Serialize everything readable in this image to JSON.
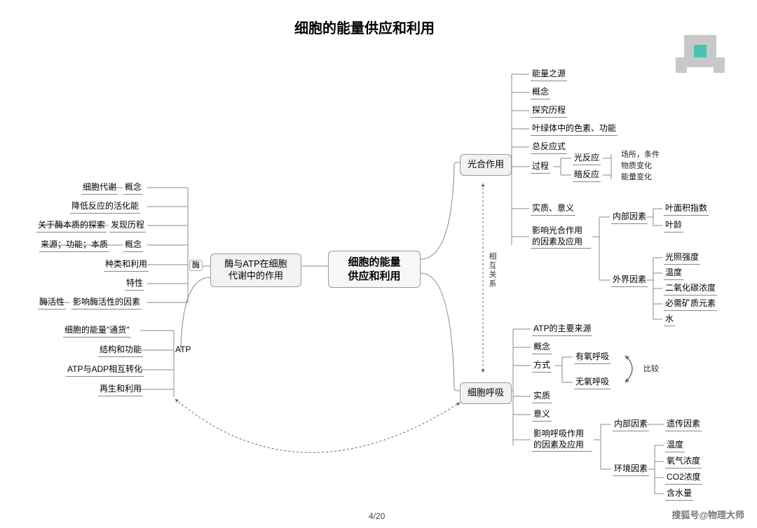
{
  "title": "细胞的能量供应和利用",
  "page": "4/20",
  "watermark": "搜狐号@物理大师",
  "rel_label": "相互关系",
  "compare_label": "比较",
  "colors": {
    "background": "#ffffff",
    "stroke": "#888888",
    "box_fill": "#f2f2f2",
    "text": "#000000"
  },
  "center": "细胞的能量\n供应和利用",
  "left_branch": {
    "box": "酶与ATP在细胞\n代谢中的作用",
    "enzyme": {
      "label": "酶",
      "items": [
        {
          "l1": "概念",
          "l2": "细胞代谢"
        },
        {
          "l1": "降低反应的活化能"
        },
        {
          "l1": "发现历程",
          "l2": "关于酶本质的探索"
        },
        {
          "l1": "概念",
          "l2": "来源；功能；本质"
        },
        {
          "l1": "种类和利用"
        },
        {
          "l1": "特性"
        },
        {
          "l1": "影响酶活性的因素",
          "l2": "酶活性"
        }
      ]
    },
    "atp": {
      "label": "ATP",
      "items": [
        {
          "l1": "细胞的能量\"通货\""
        },
        {
          "l1": "结构和功能"
        },
        {
          "l1": "ATP与ADP相互转化"
        },
        {
          "l1": "再生和利用"
        }
      ]
    }
  },
  "right_top": {
    "box": "光合作用",
    "items": [
      "能量之源",
      "概念",
      "探究历程",
      "叶绿体中的色素、功能",
      "总反应式",
      "过程",
      "实质、意义",
      "影响光合作用\n的因素及应用"
    ],
    "process": {
      "a": "光反应",
      "b": "暗反应",
      "notes": [
        "场所，条件",
        "物质变化",
        "能量变化"
      ]
    },
    "factors": {
      "inner": {
        "label": "内部因素",
        "items": [
          "叶面积指数",
          "叶龄"
        ]
      },
      "outer": {
        "label": "外界因素",
        "items": [
          "光照强度",
          "温度",
          "二氧化碳浓度",
          "必需矿质元素",
          "水"
        ]
      }
    }
  },
  "right_bottom": {
    "box": "细胞呼吸",
    "items": [
      "ATP的主要来源",
      "概念",
      "方式",
      "实质",
      "意义",
      "影响呼吸作用\n的因素及应用"
    ],
    "mode": {
      "a": "有氧呼吸",
      "b": "无氧呼吸"
    },
    "factors": {
      "inner": {
        "label": "内部因素",
        "items": [
          "遗传因素"
        ]
      },
      "env": {
        "label": "环境因素",
        "items": [
          "温度",
          "氧气浓度",
          "CO2浓度",
          "含水量"
        ]
      }
    }
  }
}
